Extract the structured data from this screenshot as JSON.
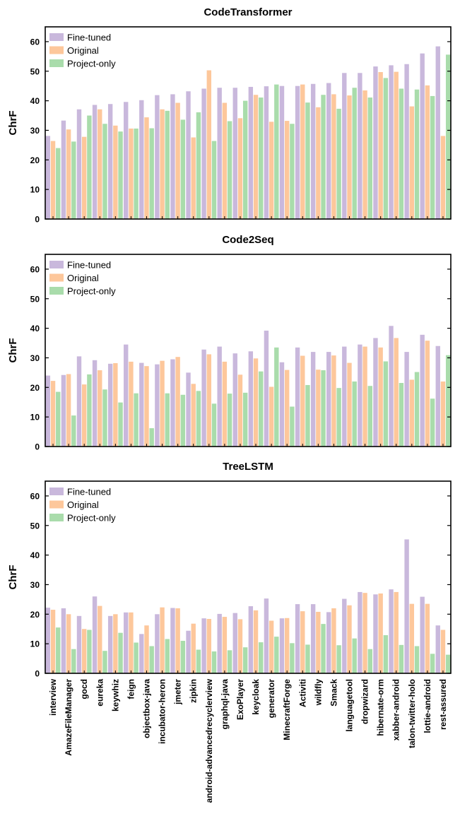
{
  "colors": {
    "fine_tuned": "#c9b8dc",
    "original": "#fdc79b",
    "project_only": "#a9dcab"
  },
  "chart_data": [
    {
      "type": "bar",
      "title": "CodeTransformer",
      "ylabel": "ChrF",
      "xlabel": "",
      "ylim": [
        0,
        65
      ],
      "yticks": [
        0,
        10,
        20,
        30,
        40,
        50,
        60
      ],
      "legend": "top-left",
      "categories": [
        "interview",
        "AmazeFileManager",
        "gocd",
        "eureka",
        "keywhiz",
        "feign",
        "objectbox-java",
        "incubator-heron",
        "jmeter",
        "zipkin",
        "android-advancedrecyclerview",
        "graphql-java",
        "ExoPlayer",
        "keycloak",
        "generator",
        "MinecraftForge",
        "Activiti",
        "wildfly",
        "Smack",
        "languagetool",
        "dropwizard",
        "hibernate-orm",
        "xabber-android",
        "talon-twitter-holo",
        "lottie-android",
        "rest-assured"
      ],
      "series": [
        {
          "name": "Fine-tuned",
          "values": [
            28.1,
            33.3,
            37.1,
            38.6,
            38.9,
            39.6,
            40.2,
            41.9,
            42.2,
            43.2,
            44.1,
            44.4,
            44.4,
            44.7,
            44.9,
            45.0,
            45.0,
            45.7,
            46.0,
            49.4,
            49.4,
            51.6,
            52.0,
            52.4,
            56.0,
            58.4
          ]
        },
        {
          "name": "Original",
          "values": [
            26.4,
            30.3,
            27.8,
            37.1,
            31.6,
            30.6,
            34.4,
            37.1,
            39.3,
            27.6,
            50.3,
            39.3,
            34.1,
            42.0,
            32.9,
            33.2,
            45.5,
            37.8,
            42.2,
            41.8,
            43.5,
            49.7,
            49.8,
            38.1,
            45.2,
            28.1
          ]
        },
        {
          "name": "Project-only",
          "values": [
            24.0,
            26.2,
            35.0,
            32.2,
            29.6,
            30.6,
            30.7,
            36.6,
            33.6,
            36.1,
            26.4,
            33.1,
            40.0,
            41.1,
            45.5,
            32.2,
            39.4,
            42.0,
            37.3,
            44.4,
            41.1,
            47.7,
            44.1,
            43.8,
            41.6,
            55.6
          ]
        }
      ]
    },
    {
      "type": "bar",
      "title": "Code2Seq",
      "ylabel": "ChrF",
      "xlabel": "",
      "ylim": [
        0,
        65
      ],
      "yticks": [
        0,
        10,
        20,
        30,
        40,
        50,
        60
      ],
      "legend": "top-left",
      "categories": [
        "interview",
        "AmazeFileManager",
        "gocd",
        "eureka",
        "keywhiz",
        "feign",
        "objectbox-java",
        "incubator-heron",
        "jmeter",
        "zipkin",
        "android-advancedrecyclerview",
        "graphql-java",
        "ExoPlayer",
        "keycloak",
        "generator",
        "MinecraftForge",
        "Activiti",
        "wildfly",
        "Smack",
        "languagetool",
        "dropwizard",
        "hibernate-orm",
        "xabber-android",
        "talon-twitter-holo",
        "lottie-android",
        "rest-assured"
      ],
      "series": [
        {
          "name": "Fine-tuned",
          "values": [
            24.0,
            24.2,
            30.5,
            29.2,
            28.0,
            34.5,
            28.3,
            27.8,
            29.5,
            25.0,
            32.8,
            33.8,
            31.5,
            32.2,
            39.2,
            28.5,
            33.5,
            32.0,
            32.0,
            33.8,
            34.5,
            36.7,
            40.8,
            32.0,
            37.8,
            34.0
          ]
        },
        {
          "name": "Original",
          "values": [
            22.2,
            24.5,
            21.0,
            25.8,
            28.2,
            28.7,
            27.2,
            29.0,
            30.3,
            21.2,
            31.2,
            28.7,
            24.3,
            29.8,
            20.2,
            25.9,
            30.7,
            26.0,
            30.8,
            28.3,
            33.8,
            33.5,
            36.7,
            22.6,
            35.8,
            22.0
          ]
        },
        {
          "name": "Project-only",
          "values": [
            18.5,
            10.5,
            24.4,
            19.3,
            14.9,
            18.0,
            6.2,
            18.0,
            17.5,
            18.8,
            14.5,
            17.9,
            18.2,
            25.4,
            33.5,
            13.5,
            20.8,
            25.8,
            19.8,
            22.0,
            20.5,
            28.8,
            21.5,
            25.2,
            16.2,
            30.9
          ]
        }
      ]
    },
    {
      "type": "bar",
      "title": "TreeLSTM",
      "ylabel": "ChrF",
      "xlabel": "",
      "ylim": [
        0,
        65
      ],
      "yticks": [
        0,
        10,
        20,
        30,
        40,
        50,
        60
      ],
      "legend": "top-left",
      "categories": [
        "interview",
        "AmazeFileManager",
        "gocd",
        "eureka",
        "keywhiz",
        "feign",
        "objectbox-java",
        "incubator-heron",
        "jmeter",
        "zipkin",
        "android-advancedrecyclerview",
        "graphql-java",
        "ExoPlayer",
        "keycloak",
        "generator",
        "MinecraftForge",
        "Activiti",
        "wildfly",
        "Smack",
        "languagetool",
        "dropwizard",
        "hibernate-orm",
        "xabber-android",
        "talon-twitter-holo",
        "lottie-android",
        "rest-assured"
      ],
      "series": [
        {
          "name": "Fine-tuned",
          "values": [
            22.2,
            22.0,
            19.4,
            26.0,
            19.4,
            20.6,
            13.3,
            20.0,
            22.1,
            14.4,
            18.6,
            20.1,
            20.4,
            22.7,
            25.3,
            18.6,
            23.4,
            23.4,
            20.7,
            25.2,
            27.5,
            26.7,
            28.4,
            45.3,
            25.9,
            16.2
          ]
        },
        {
          "name": "Original",
          "values": [
            21.5,
            20.0,
            15.0,
            22.8,
            20.0,
            20.6,
            16.2,
            22.3,
            22.0,
            16.8,
            18.4,
            19.1,
            18.3,
            21.3,
            17.8,
            18.7,
            21.0,
            20.8,
            22.0,
            23.0,
            27.2,
            27.0,
            27.5,
            23.5,
            23.5,
            14.7
          ]
        },
        {
          "name": "Project-only",
          "values": [
            15.5,
            8.2,
            14.7,
            7.6,
            13.7,
            10.4,
            9.2,
            11.6,
            11.0,
            8.0,
            7.4,
            7.8,
            8.8,
            10.5,
            12.4,
            10.2,
            9.7,
            16.7,
            9.5,
            11.8,
            8.2,
            12.9,
            9.6,
            9.2,
            6.6,
            6.3
          ]
        }
      ]
    }
  ]
}
